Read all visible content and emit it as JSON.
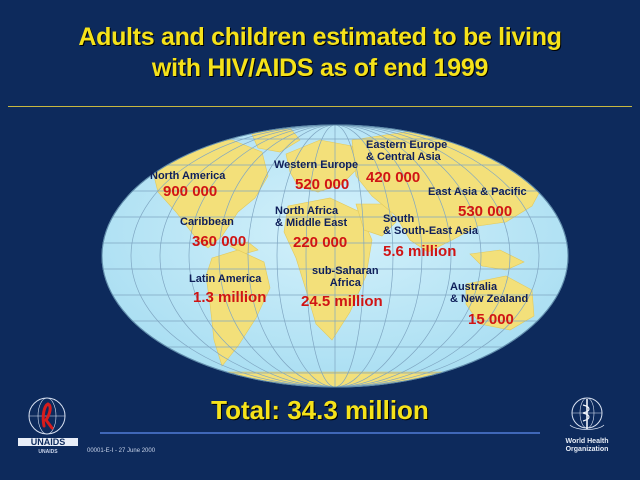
{
  "title": {
    "line1": "Adults and children estimated to be living",
    "line2": "with HIV/AIDS as of end 1999"
  },
  "regions": [
    {
      "key": "north_america",
      "name_lines": [
        "North America"
      ],
      "value": "900 000"
    },
    {
      "key": "caribbean",
      "name_lines": [
        "Caribbean"
      ],
      "value": "360 000"
    },
    {
      "key": "latin_america",
      "name_lines": [
        "Latin America"
      ],
      "value": "1.3 million"
    },
    {
      "key": "western_europe",
      "name_lines": [
        "Western Europe"
      ],
      "value": "520 000"
    },
    {
      "key": "north_africa_middle_east",
      "name_lines": [
        "North Africa",
        "& Middle East"
      ],
      "value": "220 000"
    },
    {
      "key": "sub_saharan_africa",
      "name_lines": [
        "sub-Saharan",
        "Africa"
      ],
      "value": "24.5 million"
    },
    {
      "key": "eastern_europe_central_asia",
      "name_lines": [
        "Eastern Europe",
        "& Central Asia"
      ],
      "value": "420 000"
    },
    {
      "key": "east_asia_pacific",
      "name_lines": [
        "East Asia & Pacific"
      ],
      "value": "530 000"
    },
    {
      "key": "south_southeast_asia",
      "name_lines": [
        "South",
        "& South-East Asia"
      ],
      "value": "5.6 million"
    },
    {
      "key": "australia_nz",
      "name_lines": [
        "Australia",
        "& New Zealand"
      ],
      "value": "15 000"
    }
  ],
  "total": "Total: 34.3 million",
  "footnote": "00001-E-I - 27 June 2000",
  "logos": {
    "left": {
      "name": "UNAIDS",
      "sub": "UNAIDS"
    },
    "right": {
      "line1": "World Health",
      "line2": "Organization"
    }
  },
  "colors": {
    "background": "#0d2a5c",
    "title": "#f5e21a",
    "ocean": "#b9e6f5",
    "land": "#f3e07a",
    "value_red": "#d01414"
  }
}
